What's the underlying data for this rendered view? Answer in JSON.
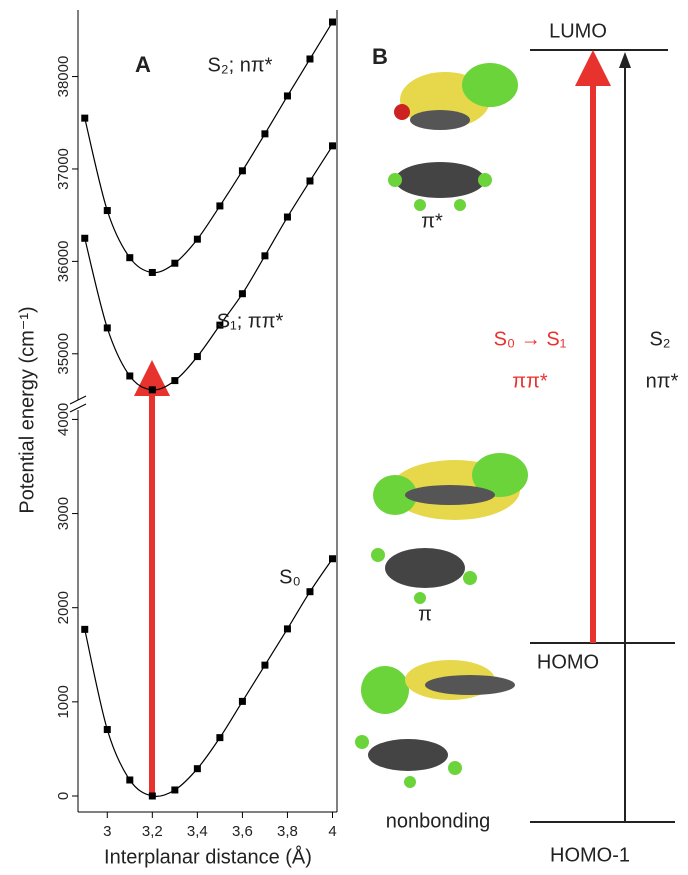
{
  "chart_data": {
    "type": "line",
    "panel_label": "A",
    "xlabel": "Interplanar distance (Å)",
    "ylabel": "Potential energy  (cm⁻¹)",
    "x": [
      2.9,
      3.0,
      3.1,
      3.2,
      3.3,
      3.4,
      3.5,
      3.6,
      3.7,
      3.8,
      3.9,
      4.0
    ],
    "xlim": [
      2.87,
      4.02
    ],
    "xticks": [
      3,
      {
        "value": 3.2,
        "label": "3,2"
      },
      {
        "value": 3.4,
        "label": "3,4"
      },
      {
        "value": 3.6,
        "label": "3,6"
      },
      {
        "value": 3.8,
        "label": "3,8"
      },
      4
    ],
    "ylim": [
      -170,
      4100
    ],
    "yticks": [
      0,
      1000,
      2000,
      3000,
      4000
    ],
    "y2lim": [
      34500,
      38720
    ],
    "y2ticks": [
      35000,
      36000,
      37000,
      38000
    ],
    "color": "#000000",
    "series": [
      {
        "name": "S₂; nπ*",
        "axis": "y2",
        "values": [
          37550,
          36550,
          36040,
          35880,
          35980,
          36240,
          36600,
          36980,
          37380,
          37790,
          38190,
          38590
        ]
      },
      {
        "name": "S₁;  ππ*",
        "axis": "y2",
        "values": [
          36250,
          35280,
          34760,
          34610,
          34710,
          34970,
          35310,
          35650,
          36060,
          36480,
          36870,
          37250
        ]
      },
      {
        "name": "S₀",
        "values": [
          1770,
          706,
          170,
          0,
          64,
          290,
          620,
          1005,
          1390,
          1775,
          2170,
          2520
        ]
      }
    ]
  },
  "diagram": {
    "panel_label": "B",
    "lumo": "LUMO",
    "homo": "HOMO",
    "homo1": "HOMO-1",
    "pi_star": "π*",
    "pi": "π",
    "nonbonding": "nonbonding",
    "transition1": "S₀ → S₁",
    "transition1_type": "ππ*",
    "transition2": "S₂",
    "transition2_type": "nπ*"
  }
}
